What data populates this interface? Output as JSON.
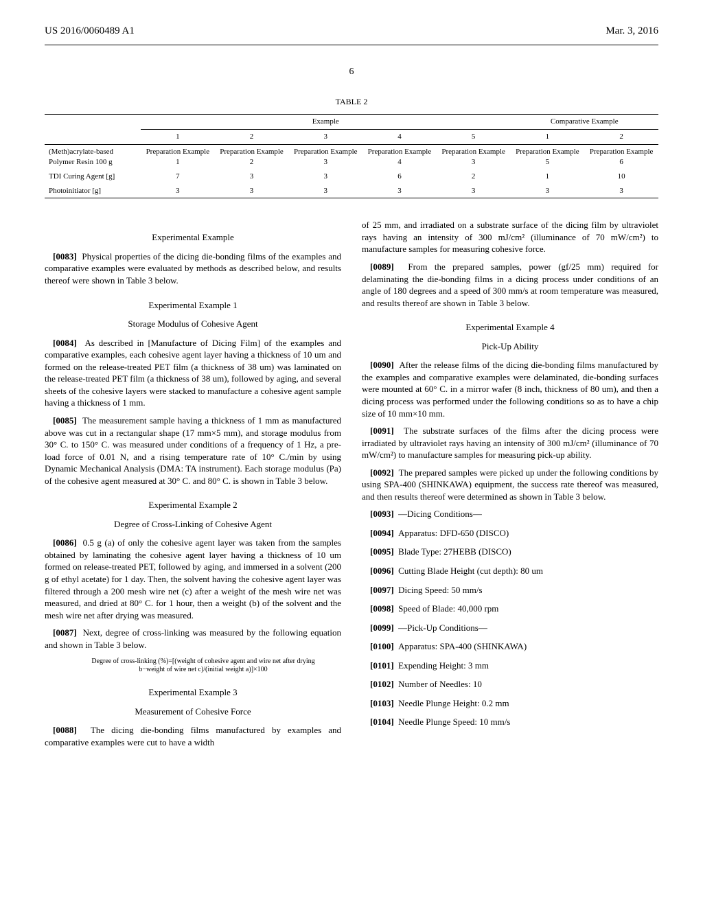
{
  "header": {
    "patent_number": "US 2016/0060489 A1",
    "date": "Mar. 3, 2016"
  },
  "page_number": "6",
  "table": {
    "label": "TABLE 2",
    "group_headers": {
      "example": "Example",
      "comparative": "Comparative Example"
    },
    "col_numbers": [
      "1",
      "2",
      "3",
      "4",
      "5",
      "1",
      "2"
    ],
    "rows": [
      {
        "label": "(Meth)acrylate-based Polymer Resin 100 g",
        "cells": [
          "Preparation Example 1",
          "Preparation Example 2",
          "Preparation Example 3",
          "Preparation Example 4",
          "Preparation Example 3",
          "Preparation Example 5",
          "Preparation Example 6"
        ]
      },
      {
        "label": "TDI Curing Agent [g]",
        "cells": [
          "7",
          "3",
          "3",
          "6",
          "2",
          "1",
          "10"
        ]
      },
      {
        "label": "Photoinitiator [g]",
        "cells": [
          "3",
          "3",
          "3",
          "3",
          "3",
          "3",
          "3"
        ]
      }
    ]
  },
  "left": {
    "exp_example": "Experimental Example",
    "p0083": "Physical properties of the dicing die-bonding films of the examples and comparative examples were evaluated by methods as described below, and results thereof were shown in Table 3 below.",
    "exp1_title": "Experimental Example 1",
    "exp1_sub": "Storage Modulus of Cohesive Agent",
    "p0084": "As described in [Manufacture of Dicing Film] of the examples and comparative examples, each cohesive agent layer having a thickness of 10 um and formed on the release-treated PET film (a thickness of 38 um) was laminated on the release-treated PET film (a thickness of 38 um), followed by aging, and several sheets of the cohesive layers were stacked to manufacture a cohesive agent sample having a thickness of 1 mm.",
    "p0085": "The measurement sample having a thickness of 1 mm as manufactured above was cut in a rectangular shape (17 mm×5 mm), and storage modulus from 30° C. to 150° C. was measured under conditions of a frequency of 1 Hz, a pre-load force of 0.01 N, and a rising temperature rate of 10° C./min by using Dynamic Mechanical Analysis (DMA: TA instrument). Each storage modulus (Pa) of the cohesive agent measured at 30° C. and 80° C. is shown in Table 3 below.",
    "exp2_title": "Experimental Example 2",
    "exp2_sub": "Degree of Cross-Linking of Cohesive Agent",
    "p0086": "0.5 g (a) of only the cohesive agent layer was taken from the samples obtained by laminating the cohesive agent layer having a thickness of 10 um formed on release-treated PET, followed by aging, and immersed in a solvent (200 g of ethyl acetate) for 1 day. Then, the solvent having the cohesive agent layer was filtered through a 200 mesh wire net (c) after a weight of the mesh wire net was measured, and dried at 80° C. for 1 hour, then a weight (b) of the solvent and the mesh wire net after drying was measured.",
    "p0087": "Next, degree of cross-linking was measured by the following equation and shown in Table 3 below.",
    "formula": "Degree of cross-linking (%)=[(weight of cohesive agent and wire net after drying b−weight of wire net c)/(initial weight a)]×100",
    "exp3_title": "Experimental Example 3",
    "exp3_sub": "Measurement of Cohesive Force",
    "p0088": "The dicing die-bonding films manufactured by examples and comparative examples were cut to have a width"
  },
  "right": {
    "p_cont": "of 25 mm, and irradiated on a substrate surface of the dicing film by ultraviolet rays having an intensity of 300 mJ/cm² (illuminance of 70 mW/cm²) to manufacture samples for measuring cohesive force.",
    "p0089": "From the prepared samples, power (gf/25 mm) required for delaminating the die-bonding films in a dicing process under conditions of an angle of 180 degrees and a speed of 300 mm/s at room temperature was measured, and results thereof are shown in Table 3 below.",
    "exp4_title": "Experimental Example 4",
    "exp4_sub": "Pick-Up Ability",
    "p0090": "After the release films of the dicing die-bonding films manufactured by the examples and comparative examples were delaminated, die-bonding surfaces were mounted at 60° C. in a mirror wafer (8 inch, thickness of 80 um), and then a dicing process was performed under the following conditions so as to have a chip size of 10 mm×10 mm.",
    "p0091": "The substrate surfaces of the films after the dicing process were irradiated by ultraviolet rays having an intensity of 300 mJ/cm² (illuminance of 70 mW/cm²) to manufacture samples for measuring pick-up ability.",
    "p0092": "The prepared samples were picked up under the following conditions by using SPA-400 (SHINKAWA) equipment, the success rate thereof was measured, and then results thereof were determined as shown in Table 3 below.",
    "items": [
      {
        "num": "[0093]",
        "text": "—Dicing Conditions—"
      },
      {
        "num": "[0094]",
        "text": "Apparatus: DFD-650 (DISCO)"
      },
      {
        "num": "[0095]",
        "text": "Blade Type: 27HEBB (DISCO)"
      },
      {
        "num": "[0096]",
        "text": "Cutting Blade Height (cut depth): 80 um"
      },
      {
        "num": "[0097]",
        "text": "Dicing Speed: 50 mm/s"
      },
      {
        "num": "[0098]",
        "text": "Speed of Blade: 40,000 rpm"
      },
      {
        "num": "[0099]",
        "text": "—Pick-Up Conditions—"
      },
      {
        "num": "[0100]",
        "text": "Apparatus: SPA-400 (SHINKAWA)"
      },
      {
        "num": "[0101]",
        "text": "Expending Height: 3 mm"
      },
      {
        "num": "[0102]",
        "text": "Number of Needles: 10"
      },
      {
        "num": "[0103]",
        "text": "Needle Plunge Height: 0.2 mm"
      },
      {
        "num": "[0104]",
        "text": "Needle Plunge Speed: 10 mm/s"
      }
    ]
  }
}
